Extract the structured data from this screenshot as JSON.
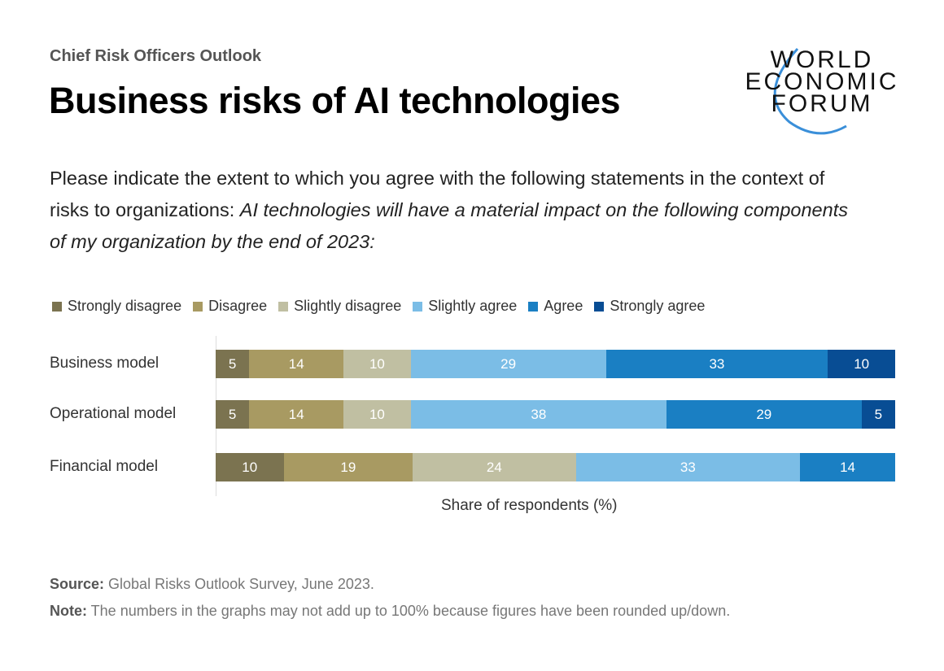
{
  "header": {
    "kicker": "Chief Risk Officers Outlook",
    "title": "Business risks of AI technologies",
    "question_plain": "Please indicate the extent to which you agree with the following statements in the context of risks to organizations: ",
    "question_italic": "AI technologies will have a material impact on the following components of my organization by the end of 2023:"
  },
  "logo": {
    "lines": [
      "WORLD",
      "ECONOMIC",
      "FORUM"
    ],
    "arc_color": "#3a8fd9"
  },
  "chart_data": {
    "type": "bar",
    "orientation": "horizontal",
    "stacked": true,
    "categories": [
      "Business model",
      "Operational model",
      "Financial model"
    ],
    "series": [
      {
        "name": "Strongly disagree",
        "color": "#7b7350",
        "values": [
          5,
          5,
          10
        ]
      },
      {
        "name": "Disagree",
        "color": "#a89a62",
        "values": [
          14,
          14,
          19
        ]
      },
      {
        "name": "Slightly disagree",
        "color": "#c0bfa2",
        "values": [
          10,
          10,
          24
        ]
      },
      {
        "name": "Slightly agree",
        "color": "#7bbde6",
        "values": [
          29,
          38,
          33
        ]
      },
      {
        "name": "Agree",
        "color": "#1a7fc3",
        "values": [
          33,
          29,
          14
        ]
      },
      {
        "name": "Strongly agree",
        "color": "#084d94",
        "values": [
          10,
          5,
          0
        ]
      }
    ],
    "xlabel": "Share of respondents (%)",
    "legend": "top-left",
    "grid": false
  },
  "footer": {
    "source_label": "Source:",
    "source": " Global Risks Outlook Survey, June 2023.",
    "note_label": "Note:",
    "note": " The numbers in the graphs may not add up to 100% because figures have been rounded up/down."
  }
}
